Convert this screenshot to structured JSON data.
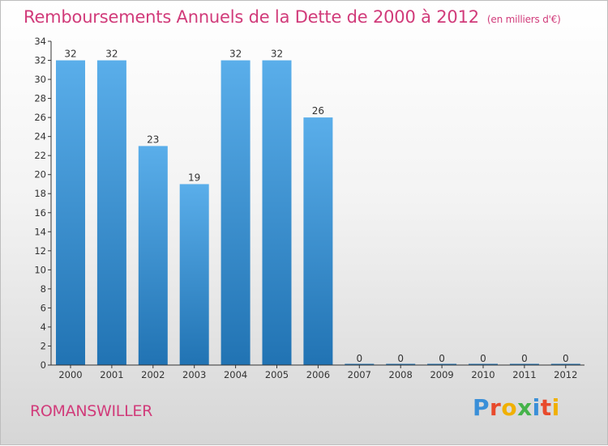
{
  "header": {
    "title": "Remboursements Annuels de la Dette de 2000 à 2012",
    "unit": "(en milliers d'€)"
  },
  "footer": {
    "city": "ROMANSWILLER",
    "brand_letters": [
      "P",
      "r",
      "o",
      "x",
      "i",
      "t",
      "i"
    ],
    "brand_colors": [
      "#3a8fd8",
      "#e84a2c",
      "#f0b000",
      "#45b34a",
      "#3a8fd8",
      "#e84a2c",
      "#f0b000"
    ]
  },
  "colors": {
    "title": "#d13b7a",
    "bar_top": "#5aaeea",
    "bar_bottom": "#2173b3",
    "axis": "#333333"
  },
  "chart_data": {
    "type": "bar",
    "categories": [
      "2000",
      "2001",
      "2002",
      "2003",
      "2004",
      "2005",
      "2006",
      "2007",
      "2008",
      "2009",
      "2010",
      "2011",
      "2012"
    ],
    "values": [
      32,
      32,
      23,
      19,
      32,
      32,
      26,
      0,
      0,
      0,
      0,
      0,
      0
    ],
    "data_labels": [
      "32",
      "32",
      "23",
      "19",
      "32",
      "32",
      "26",
      "0",
      "0",
      "0",
      "0",
      "0",
      "0"
    ],
    "title": "Remboursements Annuels de la Dette de 2000 à 2012",
    "xlabel": "",
    "ylabel": "",
    "ylim": [
      0,
      34
    ],
    "yticks": [
      "0",
      "2",
      "4",
      "6",
      "8",
      "10",
      "12",
      "14",
      "16",
      "18",
      "20",
      "22",
      "24",
      "26",
      "28",
      "30",
      "32",
      "34"
    ],
    "grid": false,
    "legend": "none"
  }
}
